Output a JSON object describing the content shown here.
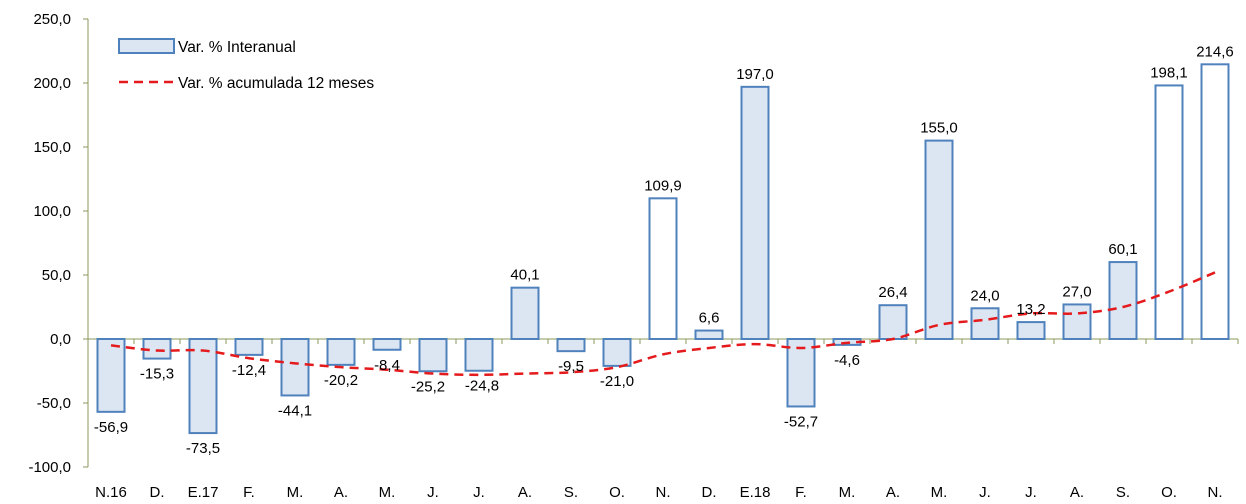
{
  "chart_data": {
    "type": "bar",
    "categories": [
      "N.16",
      "D.",
      "E.17",
      "F.",
      "M.",
      "A.",
      "M.",
      "J.",
      "J.",
      "A.",
      "S.",
      "O.",
      "N.",
      "D.",
      "E.18",
      "F.",
      "M.",
      "A.",
      "M.",
      "J.",
      "J.",
      "A.",
      "S.",
      "O.",
      "N."
    ],
    "series": [
      {
        "name": "Var. % Interanual",
        "type": "bar",
        "values": [
          -56.9,
          -15.3,
          -73.5,
          -12.4,
          -44.1,
          -20.2,
          -8.4,
          -25.2,
          -24.8,
          40.1,
          -9.5,
          -21.0,
          109.9,
          6.6,
          197.0,
          -52.7,
          -4.6,
          26.4,
          155.0,
          24.0,
          13.2,
          27.0,
          60.1,
          198.1,
          214.6
        ],
        "labels": [
          "-56,9",
          "-15,3",
          "-73,5",
          "-12,4",
          "-44,1",
          "-20,2",
          "-8,4",
          "-25,2",
          "-24,8",
          "40,1",
          "-9,5",
          "-21,0",
          "109,9",
          "6,6",
          "197,0",
          "-52,7",
          "-4,6",
          "26,4",
          "155,0",
          "24,0",
          "13,2",
          "27,0",
          "60,1",
          "198,1",
          "214,6"
        ],
        "hollow": [
          false,
          false,
          false,
          false,
          false,
          false,
          false,
          false,
          false,
          false,
          false,
          false,
          true,
          false,
          false,
          false,
          false,
          false,
          false,
          false,
          false,
          false,
          false,
          true,
          true
        ],
        "color": "#4f81bd",
        "fill": "#dce6f2"
      },
      {
        "name": "Var. % acumulada 12 meses",
        "type": "line",
        "style": "dashed",
        "color": "#e41a1c",
        "values": [
          -5,
          -9,
          -9,
          -15,
          -19,
          -22,
          -24,
          -27,
          -28,
          -27,
          -26,
          -22,
          -12,
          -7,
          -4,
          -7,
          -3,
          0,
          11,
          15,
          20,
          20,
          25,
          37,
          52
        ]
      }
    ],
    "ylim": [
      -100,
      250
    ],
    "yticks": [
      "-100,0",
      "-50,0",
      "0,0",
      "50,0",
      "100,0",
      "150,0",
      "200,0",
      "250,0"
    ],
    "ytick_values": [
      -100,
      -50,
      0,
      50,
      100,
      150,
      200,
      250
    ],
    "grid": false,
    "legend_position": "top-left",
    "title": "",
    "xlabel": "",
    "ylabel": ""
  }
}
